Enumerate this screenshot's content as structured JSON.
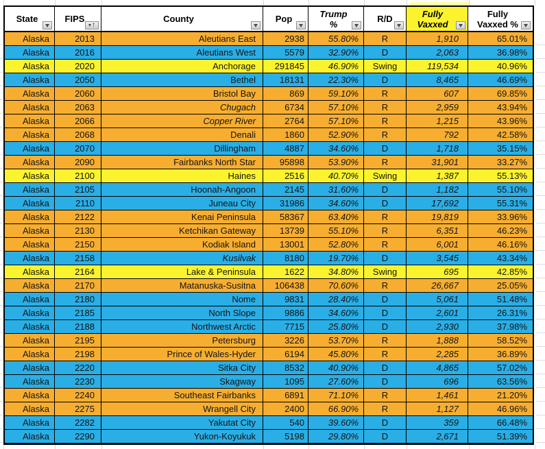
{
  "colors": {
    "R": "#f7ae30",
    "D": "#2aaee6",
    "Swing": "#fbf32d",
    "header_highlight": "#fbf32d",
    "border": "#000000"
  },
  "table": {
    "columns": [
      {
        "key": "state",
        "label": "State",
        "label_lines": [
          "State"
        ],
        "has_filter": true
      },
      {
        "key": "fips",
        "label": "FIPS",
        "label_lines": [
          "FIPS"
        ],
        "has_filter": true,
        "sorted": "asc"
      },
      {
        "key": "county",
        "label": "County",
        "label_lines": [
          "County"
        ],
        "has_filter": true
      },
      {
        "key": "pop",
        "label": "Pop",
        "label_lines": [
          "Pop"
        ],
        "has_filter": true
      },
      {
        "key": "trump_pct",
        "label": "Trump %",
        "label_lines": [
          "Trump",
          "%"
        ],
        "has_filter": true
      },
      {
        "key": "rd",
        "label": "R/D",
        "label_lines": [
          "R/D"
        ],
        "has_filter": true
      },
      {
        "key": "fully_vaxxed",
        "label": "Fully Vaxxed",
        "label_lines": [
          "Fully",
          "Vaxxed"
        ],
        "has_filter": true,
        "highlight": true
      },
      {
        "key": "fully_vaxxed_pct",
        "label": "Fully Vaxxed %",
        "label_lines": [
          "Fully",
          "Vaxxed %"
        ],
        "has_filter": true
      }
    ],
    "rows": [
      {
        "state": "Alaska",
        "fips": "2013",
        "county": "Aleutians East",
        "county_italic": false,
        "pop": "2938",
        "trump_pct": "55.80%",
        "rd": "R",
        "fully_vaxxed": "1,910",
        "fully_vaxxed_pct": "65.01%"
      },
      {
        "state": "Alaska",
        "fips": "2016",
        "county": "Aleutians West",
        "county_italic": false,
        "pop": "5579",
        "trump_pct": "32.90%",
        "rd": "D",
        "fully_vaxxed": "2,063",
        "fully_vaxxed_pct": "36.98%"
      },
      {
        "state": "Alaska",
        "fips": "2020",
        "county": "Anchorage",
        "county_italic": false,
        "pop": "291845",
        "trump_pct": "46.90%",
        "rd": "Swing",
        "fully_vaxxed": "119,534",
        "fully_vaxxed_pct": "40.96%"
      },
      {
        "state": "Alaska",
        "fips": "2050",
        "county": "Bethel",
        "county_italic": false,
        "pop": "18131",
        "trump_pct": "22.30%",
        "rd": "D",
        "fully_vaxxed": "8,465",
        "fully_vaxxed_pct": "46.69%"
      },
      {
        "state": "Alaska",
        "fips": "2060",
        "county": "Bristol Bay",
        "county_italic": false,
        "pop": "869",
        "trump_pct": "59.10%",
        "rd": "R",
        "fully_vaxxed": "607",
        "fully_vaxxed_pct": "69.85%"
      },
      {
        "state": "Alaska",
        "fips": "2063",
        "county": "Chugach",
        "county_italic": true,
        "pop": "6734",
        "trump_pct": "57.10%",
        "rd": "R",
        "fully_vaxxed": "2,959",
        "fully_vaxxed_pct": "43.94%"
      },
      {
        "state": "Alaska",
        "fips": "2066",
        "county": "Copper River",
        "county_italic": true,
        "pop": "2764",
        "trump_pct": "57.10%",
        "rd": "R",
        "fully_vaxxed": "1,215",
        "fully_vaxxed_pct": "43.96%"
      },
      {
        "state": "Alaska",
        "fips": "2068",
        "county": "Denali",
        "county_italic": false,
        "pop": "1860",
        "trump_pct": "52.90%",
        "rd": "R",
        "fully_vaxxed": "792",
        "fully_vaxxed_pct": "42.58%"
      },
      {
        "state": "Alaska",
        "fips": "2070",
        "county": "Dillingham",
        "county_italic": false,
        "pop": "4887",
        "trump_pct": "34.60%",
        "rd": "D",
        "fully_vaxxed": "1,718",
        "fully_vaxxed_pct": "35.15%"
      },
      {
        "state": "Alaska",
        "fips": "2090",
        "county": "Fairbanks North Star",
        "county_italic": false,
        "pop": "95898",
        "trump_pct": "53.90%",
        "rd": "R",
        "fully_vaxxed": "31,901",
        "fully_vaxxed_pct": "33.27%"
      },
      {
        "state": "Alaska",
        "fips": "2100",
        "county": "Haines",
        "county_italic": false,
        "pop": "2516",
        "trump_pct": "40.70%",
        "rd": "Swing",
        "fully_vaxxed": "1,387",
        "fully_vaxxed_pct": "55.13%"
      },
      {
        "state": "Alaska",
        "fips": "2105",
        "county": "Hoonah-Angoon",
        "county_italic": false,
        "pop": "2145",
        "trump_pct": "31.60%",
        "rd": "D",
        "fully_vaxxed": "1,182",
        "fully_vaxxed_pct": "55.10%"
      },
      {
        "state": "Alaska",
        "fips": "2110",
        "county": "Juneau City",
        "county_italic": false,
        "pop": "31986",
        "trump_pct": "34.60%",
        "rd": "D",
        "fully_vaxxed": "17,692",
        "fully_vaxxed_pct": "55.31%"
      },
      {
        "state": "Alaska",
        "fips": "2122",
        "county": "Kenai Peninsula",
        "county_italic": false,
        "pop": "58367",
        "trump_pct": "63.40%",
        "rd": "R",
        "fully_vaxxed": "19,819",
        "fully_vaxxed_pct": "33.96%"
      },
      {
        "state": "Alaska",
        "fips": "2130",
        "county": "Ketchikan Gateway",
        "county_italic": false,
        "pop": "13739",
        "trump_pct": "55.10%",
        "rd": "R",
        "fully_vaxxed": "6,351",
        "fully_vaxxed_pct": "46.23%"
      },
      {
        "state": "Alaska",
        "fips": "2150",
        "county": "Kodiak Island",
        "county_italic": false,
        "pop": "13001",
        "trump_pct": "52.80%",
        "rd": "R",
        "fully_vaxxed": "6,001",
        "fully_vaxxed_pct": "46.16%"
      },
      {
        "state": "Alaska",
        "fips": "2158",
        "county": "Kusilvak",
        "county_italic": true,
        "pop": "8180",
        "trump_pct": "19.70%",
        "rd": "D",
        "fully_vaxxed": "3,545",
        "fully_vaxxed_pct": "43.34%"
      },
      {
        "state": "Alaska",
        "fips": "2164",
        "county": "Lake & Peninsula",
        "county_italic": false,
        "pop": "1622",
        "trump_pct": "34.80%",
        "rd": "Swing",
        "fully_vaxxed": "695",
        "fully_vaxxed_pct": "42.85%"
      },
      {
        "state": "Alaska",
        "fips": "2170",
        "county": "Matanuska-Susitna",
        "county_italic": false,
        "pop": "106438",
        "trump_pct": "70.60%",
        "rd": "R",
        "fully_vaxxed": "26,667",
        "fully_vaxxed_pct": "25.05%"
      },
      {
        "state": "Alaska",
        "fips": "2180",
        "county": "Nome",
        "county_italic": false,
        "pop": "9831",
        "trump_pct": "28.40%",
        "rd": "D",
        "fully_vaxxed": "5,061",
        "fully_vaxxed_pct": "51.48%"
      },
      {
        "state": "Alaska",
        "fips": "2185",
        "county": "North Slope",
        "county_italic": false,
        "pop": "9886",
        "trump_pct": "34.60%",
        "rd": "D",
        "fully_vaxxed": "2,601",
        "fully_vaxxed_pct": "26.31%"
      },
      {
        "state": "Alaska",
        "fips": "2188",
        "county": "Northwest Arctic",
        "county_italic": false,
        "pop": "7715",
        "trump_pct": "25.80%",
        "rd": "D",
        "fully_vaxxed": "2,930",
        "fully_vaxxed_pct": "37.98%"
      },
      {
        "state": "Alaska",
        "fips": "2195",
        "county": "Petersburg",
        "county_italic": false,
        "pop": "3226",
        "trump_pct": "53.70%",
        "rd": "R",
        "fully_vaxxed": "1,888",
        "fully_vaxxed_pct": "58.52%"
      },
      {
        "state": "Alaska",
        "fips": "2198",
        "county": "Prince of Wales-Hyder",
        "county_italic": false,
        "pop": "6194",
        "trump_pct": "45.80%",
        "rd": "R",
        "fully_vaxxed": "2,285",
        "fully_vaxxed_pct": "36.89%"
      },
      {
        "state": "Alaska",
        "fips": "2220",
        "county": "Sitka City",
        "county_italic": false,
        "pop": "8532",
        "trump_pct": "40.90%",
        "rd": "D",
        "fully_vaxxed": "4,865",
        "fully_vaxxed_pct": "57.02%"
      },
      {
        "state": "Alaska",
        "fips": "2230",
        "county": "Skagway",
        "county_italic": false,
        "pop": "1095",
        "trump_pct": "27.60%",
        "rd": "D",
        "fully_vaxxed": "696",
        "fully_vaxxed_pct": "63.56%"
      },
      {
        "state": "Alaska",
        "fips": "2240",
        "county": "Southeast Fairbanks",
        "county_italic": false,
        "pop": "6891",
        "trump_pct": "71.10%",
        "rd": "R",
        "fully_vaxxed": "1,461",
        "fully_vaxxed_pct": "21.20%"
      },
      {
        "state": "Alaska",
        "fips": "2275",
        "county": "Wrangell City",
        "county_italic": false,
        "pop": "2400",
        "trump_pct": "66.90%",
        "rd": "R",
        "fully_vaxxed": "1,127",
        "fully_vaxxed_pct": "46.96%"
      },
      {
        "state": "Alaska",
        "fips": "2282",
        "county": "Yakutat City",
        "county_italic": false,
        "pop": "540",
        "trump_pct": "39.60%",
        "rd": "D",
        "fully_vaxxed": "359",
        "fully_vaxxed_pct": "66.48%"
      },
      {
        "state": "Alaska",
        "fips": "2290",
        "county": "Yukon-Koyukuk",
        "county_italic": false,
        "pop": "5198",
        "trump_pct": "29.80%",
        "rd": "D",
        "fully_vaxxed": "2,671",
        "fully_vaxxed_pct": "51.39%"
      }
    ]
  }
}
